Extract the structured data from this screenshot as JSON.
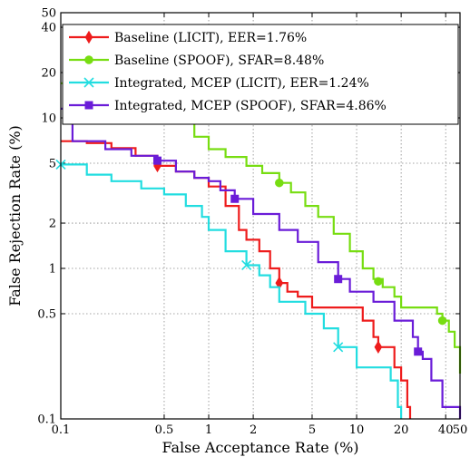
{
  "chart_data": {
    "type": "line",
    "title": "",
    "xlabel": "False Acceptance Rate (%)",
    "ylabel": "False Rejection Rate (%)",
    "xscale": "log",
    "yscale": "log",
    "xlim": [
      0.1,
      50
    ],
    "ylim": [
      0.1,
      50
    ],
    "grid": "on",
    "legend_position": "top-right",
    "xticks": [
      {
        "v": 0.1,
        "label": "0.1"
      },
      {
        "v": 0.5,
        "label": "0.5"
      },
      {
        "v": 1,
        "label": "1"
      },
      {
        "v": 2,
        "label": "2"
      },
      {
        "v": 5,
        "label": "5"
      },
      {
        "v": 10,
        "label": "10"
      },
      {
        "v": 20,
        "label": "20"
      },
      {
        "v": 40,
        "label": "40"
      },
      {
        "v": 50,
        "label": "50"
      }
    ],
    "yticks": [
      {
        "v": 0.1,
        "label": "0.1"
      },
      {
        "v": 0.5,
        "label": "0.5"
      },
      {
        "v": 1,
        "label": "1"
      },
      {
        "v": 2,
        "label": "2"
      },
      {
        "v": 5,
        "label": "5"
      },
      {
        "v": 10,
        "label": "10"
      },
      {
        "v": 20,
        "label": "20"
      },
      {
        "v": 40,
        "label": "40"
      },
      {
        "v": 50,
        "label": "50"
      }
    ],
    "series": [
      {
        "name": "Baseline (LICIT), EER=1.76%",
        "color": "#ee1c1c",
        "marker": "diamond",
        "points": [
          [
            0.1,
            7.0
          ],
          [
            0.15,
            6.8
          ],
          [
            0.22,
            6.3
          ],
          [
            0.32,
            5.6
          ],
          [
            0.45,
            4.8
          ],
          [
            0.6,
            4.4
          ],
          [
            0.8,
            4.0
          ],
          [
            1.0,
            3.5
          ],
          [
            1.3,
            2.6
          ],
          [
            1.6,
            1.8
          ],
          [
            1.8,
            1.55
          ],
          [
            2.2,
            1.3
          ],
          [
            2.6,
            1.0
          ],
          [
            3.0,
            0.8
          ],
          [
            3.4,
            0.7
          ],
          [
            4.0,
            0.65
          ],
          [
            5.0,
            0.55
          ],
          [
            8.0,
            0.55
          ],
          [
            11.0,
            0.45
          ],
          [
            13.0,
            0.35
          ],
          [
            14.0,
            0.3
          ],
          [
            16.0,
            0.3
          ],
          [
            18.0,
            0.22
          ],
          [
            20.0,
            0.18
          ],
          [
            22.0,
            0.12
          ],
          [
            23.0,
            0.1
          ]
        ],
        "marker_points": [
          [
            0.45,
            4.8
          ],
          [
            3.0,
            0.8
          ],
          [
            14.0,
            0.3
          ]
        ]
      },
      {
        "name": "Baseline (SPOOF), SFAR=8.48%",
        "color": "#77dd11",
        "marker": "circle",
        "points": [
          [
            0.1,
            17.0
          ],
          [
            0.15,
            15.5
          ],
          [
            0.22,
            14.0
          ],
          [
            0.3,
            12.5
          ],
          [
            0.45,
            10.8
          ],
          [
            0.6,
            9.5
          ],
          [
            0.8,
            7.5
          ],
          [
            1.0,
            6.2
          ],
          [
            1.3,
            5.5
          ],
          [
            1.8,
            4.8
          ],
          [
            2.3,
            4.3
          ],
          [
            3.0,
            3.7
          ],
          [
            3.6,
            3.2
          ],
          [
            4.5,
            2.6
          ],
          [
            5.5,
            2.2
          ],
          [
            7.0,
            1.7
          ],
          [
            9.0,
            1.3
          ],
          [
            11.0,
            1.0
          ],
          [
            13.0,
            0.85
          ],
          [
            15.0,
            0.75
          ],
          [
            18.0,
            0.65
          ],
          [
            20.0,
            0.55
          ],
          [
            30.0,
            0.55
          ],
          [
            35.0,
            0.5
          ],
          [
            38.0,
            0.45
          ],
          [
            42.0,
            0.38
          ],
          [
            46.0,
            0.3
          ],
          [
            50.0,
            0.2
          ]
        ],
        "marker_points": [
          [
            0.45,
            10.8
          ],
          [
            3.0,
            3.7
          ],
          [
            14.0,
            0.82
          ],
          [
            38.0,
            0.45
          ]
        ]
      },
      {
        "name": "Integrated, MCEP (LICIT), EER=1.24%",
        "color": "#22dde0",
        "marker": "x",
        "points": [
          [
            0.1,
            4.9
          ],
          [
            0.15,
            4.2
          ],
          [
            0.22,
            3.8
          ],
          [
            0.35,
            3.4
          ],
          [
            0.5,
            3.1
          ],
          [
            0.7,
            2.6
          ],
          [
            0.9,
            2.2
          ],
          [
            1.0,
            1.8
          ],
          [
            1.3,
            1.3
          ],
          [
            1.8,
            1.05
          ],
          [
            2.2,
            0.9
          ],
          [
            2.6,
            0.75
          ],
          [
            3.0,
            0.6
          ],
          [
            4.5,
            0.5
          ],
          [
            6.0,
            0.4
          ],
          [
            7.5,
            0.3
          ],
          [
            10.0,
            0.22
          ],
          [
            13.0,
            0.22
          ],
          [
            17.0,
            0.18
          ],
          [
            19.0,
            0.12
          ],
          [
            20.0,
            0.1
          ]
        ],
        "marker_points": [
          [
            0.1,
            4.9
          ],
          [
            1.8,
            1.05
          ],
          [
            7.5,
            0.3
          ]
        ]
      },
      {
        "name": "Integrated, MCEP (SPOOF), SFAR=4.86%",
        "color": "#6a1cd8",
        "marker": "square",
        "points": [
          [
            0.1,
            11.5
          ],
          [
            0.11,
            9.6
          ],
          [
            0.12,
            7.0
          ],
          [
            0.2,
            6.2
          ],
          [
            0.3,
            5.6
          ],
          [
            0.45,
            5.2
          ],
          [
            0.6,
            4.4
          ],
          [
            0.8,
            4.0
          ],
          [
            1.0,
            3.8
          ],
          [
            1.2,
            3.3
          ],
          [
            1.5,
            2.9
          ],
          [
            2.0,
            2.3
          ],
          [
            3.0,
            1.8
          ],
          [
            4.0,
            1.5
          ],
          [
            5.5,
            1.1
          ],
          [
            7.5,
            0.85
          ],
          [
            9.0,
            0.7
          ],
          [
            13.0,
            0.6
          ],
          [
            18.0,
            0.45
          ],
          [
            24.0,
            0.35
          ],
          [
            26.0,
            0.28
          ],
          [
            28.0,
            0.25
          ],
          [
            32.0,
            0.18
          ],
          [
            38.0,
            0.12
          ],
          [
            48.0,
            0.12
          ],
          [
            50.0,
            0.1
          ]
        ],
        "marker_points": [
          [
            0.11,
            9.6
          ],
          [
            0.45,
            5.2
          ],
          [
            1.5,
            2.9
          ],
          [
            7.5,
            0.85
          ],
          [
            26.0,
            0.28
          ]
        ]
      }
    ]
  }
}
